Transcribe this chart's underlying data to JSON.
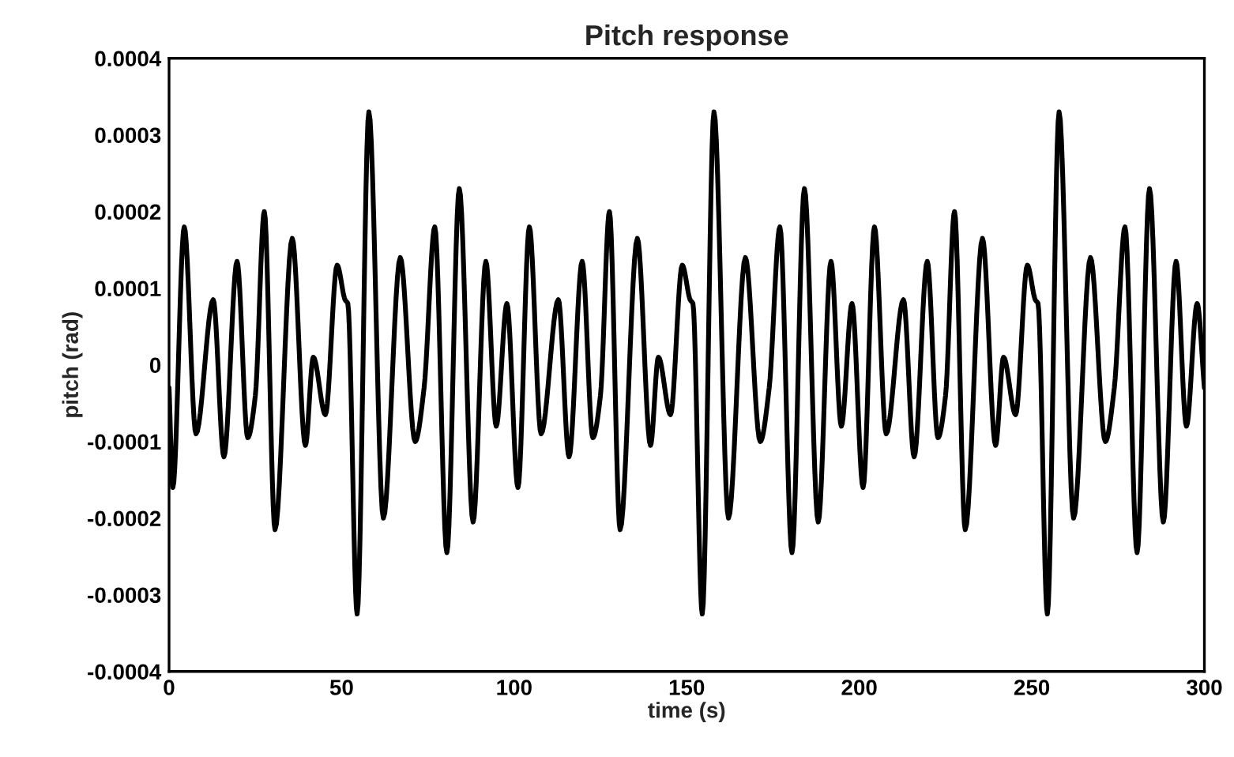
{
  "chart_data": {
    "type": "line",
    "title": "Pitch response",
    "xlabel": "time (s)",
    "ylabel": "pitch (rad)",
    "xlim": [
      0,
      300
    ],
    "xticks": [
      0,
      50,
      100,
      150,
      200,
      250,
      300
    ],
    "ylim": [
      -0.0004,
      0.0004
    ],
    "yticks": [
      -0.0004,
      -0.0003,
      -0.0002,
      -0.0001,
      0,
      0.0001,
      0.0002,
      0.0003,
      0.0004
    ],
    "grid": false,
    "legend": false,
    "marker": "none",
    "line_style": "solid",
    "series": [
      {
        "color": "#000000",
        "x": [
          0,
          1.1,
          4.4,
          7.8,
          12.8,
          15.9,
          19.7,
          22.8,
          25.0,
          27.6,
          30.7,
          35.7,
          39.5,
          41.8,
          45.3,
          48.7,
          51.0,
          51.8,
          54.5,
          57.9,
          62.1,
          67.0,
          71.3,
          73.9,
          77.0,
          80.5,
          84.1,
          88.1,
          91.8,
          94.8,
          97.9,
          101.1,
          104.4,
          107.8,
          112.8,
          115.9,
          119.7,
          122.8,
          125.0,
          127.6,
          130.7,
          135.7,
          139.5,
          141.8,
          145.3,
          148.7,
          151.0,
          151.8,
          154.5,
          157.9,
          162.1,
          167.0,
          171.3,
          173.9,
          177.0,
          180.5,
          184.1,
          188.1,
          191.8,
          194.8,
          197.9,
          201.1,
          204.4,
          207.8,
          212.8,
          215.9,
          219.7,
          222.8,
          225.0,
          227.6,
          230.7,
          235.7,
          239.5,
          241.8,
          245.3,
          248.7,
          251.0,
          251.8,
          254.5,
          257.9,
          262.1,
          267.0,
          271.3,
          273.9,
          277.0,
          280.5,
          284.1,
          288.1,
          291.8,
          294.8,
          297.9,
          300
        ],
        "values": [
          -3e-05,
          -0.00016,
          0.00018,
          -9e-05,
          8.5e-05,
          -0.00012,
          0.000135,
          -9.5e-05,
          -4e-05,
          0.0002,
          -0.000215,
          0.000165,
          -0.000105,
          1e-05,
          -6.5e-05,
          0.00013,
          8.5e-05,
          8e-05,
          -0.000325,
          0.00033,
          -0.0002,
          0.00014,
          -0.0001,
          -3e-05,
          0.00018,
          -0.000245,
          0.00023,
          -0.000205,
          0.000135,
          -8e-05,
          8e-05,
          -0.00016,
          0.00018,
          -9e-05,
          8.5e-05,
          -0.00012,
          0.000135,
          -9.5e-05,
          -4e-05,
          0.0002,
          -0.000215,
          0.000165,
          -0.000105,
          1e-05,
          -6.5e-05,
          0.00013,
          8.5e-05,
          8e-05,
          -0.000325,
          0.00033,
          -0.0002,
          0.00014,
          -0.0001,
          -3e-05,
          0.00018,
          -0.000245,
          0.00023,
          -0.000205,
          0.000135,
          -8e-05,
          8e-05,
          -0.00016,
          0.00018,
          -9e-05,
          8.5e-05,
          -0.00012,
          0.000135,
          -9.5e-05,
          -4e-05,
          0.0002,
          -0.000215,
          0.000165,
          -0.000105,
          1e-05,
          -6.5e-05,
          0.00013,
          8.5e-05,
          8e-05,
          -0.000325,
          0.00033,
          -0.0002,
          0.00014,
          -0.0001,
          -3e-05,
          0.00018,
          -0.000245,
          0.00023,
          -0.000205,
          0.000135,
          -8e-05,
          8e-05,
          -3e-05
        ]
      }
    ]
  }
}
